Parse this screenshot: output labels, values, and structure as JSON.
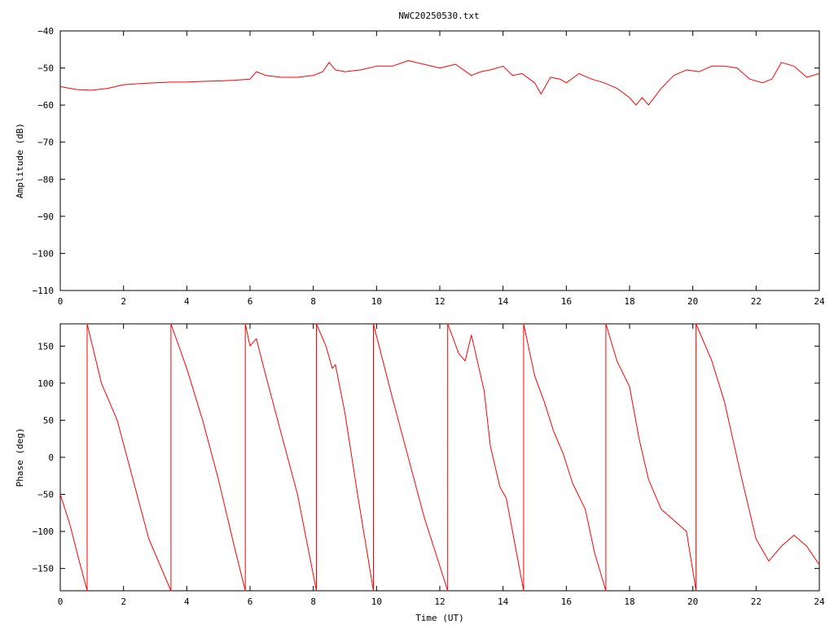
{
  "title": "NWC20250530.txt",
  "colors": {
    "series": "#ff0000",
    "axis": "#000000",
    "background": "#ffffff"
  },
  "chart_data": [
    {
      "type": "line",
      "title": "NWC20250530.txt",
      "xlabel": "",
      "ylabel": "Amplitude (dB)",
      "xlim": [
        0,
        24
      ],
      "ylim": [
        -110,
        -40
      ],
      "xticks": [
        0,
        2,
        4,
        6,
        8,
        10,
        12,
        14,
        16,
        18,
        20,
        22,
        24
      ],
      "yticks": [
        -110,
        -100,
        -90,
        -80,
        -70,
        -60,
        -50,
        -40
      ],
      "xtick_labels": [
        "0",
        "2",
        "4",
        "6",
        "8",
        "10",
        "12",
        "14",
        "16",
        "18",
        "20",
        "22",
        "24"
      ],
      "ytick_labels": [
        "−110",
        "−100",
        "−90",
        "−80",
        "−70",
        "−60",
        "−50",
        "−40"
      ],
      "grid": false,
      "series": [
        {
          "x": [
            0,
            0.5,
            1.0,
            1.5,
            2.0,
            2.5,
            3.0,
            3.5,
            4.0,
            4.5,
            5.0,
            5.5,
            6.0,
            6.2,
            6.5,
            7.0,
            7.5,
            8.0,
            8.3,
            8.5,
            8.7,
            9.0,
            9.5,
            10.0,
            10.5,
            11.0,
            11.5,
            12.0,
            12.5,
            13.0,
            13.3,
            13.6,
            14.0,
            14.3,
            14.6,
            15.0,
            15.2,
            15.5,
            15.8,
            16.0,
            16.4,
            16.8,
            17.2,
            17.6,
            18.0,
            18.2,
            18.4,
            18.6,
            19.0,
            19.4,
            19.8,
            20.2,
            20.6,
            21.0,
            21.4,
            21.8,
            22.2,
            22.5,
            22.8,
            23.2,
            23.6,
            24.0
          ],
          "y": [
            -55,
            -55.8,
            -56,
            -55.5,
            -54.5,
            -54.2,
            -54,
            -53.8,
            -53.8,
            -53.6,
            -53.5,
            -53.3,
            -53,
            -51,
            -52,
            -52.5,
            -52.5,
            -52,
            -51,
            -48.5,
            -50.5,
            -51,
            -50.5,
            -49.5,
            -49.5,
            -48,
            -49,
            -50,
            -49,
            -52,
            -51,
            -50.5,
            -49.5,
            -52,
            -51.5,
            -54,
            -57,
            -52.5,
            -53,
            -54,
            -51.5,
            -53,
            -54,
            -55.5,
            -58,
            -60,
            -58,
            -60,
            -55.5,
            -52,
            -50.5,
            -51,
            -49.5,
            -49.5,
            -50,
            -53,
            -54,
            -53,
            -48.5,
            -49.5,
            -52.5,
            -51.5
          ]
        }
      ]
    },
    {
      "type": "line",
      "title": "",
      "xlabel": "Time (UT)",
      "ylabel": "Phase (deg)",
      "xlim": [
        0,
        24
      ],
      "ylim": [
        -180,
        180
      ],
      "xticks": [
        0,
        2,
        4,
        6,
        8,
        10,
        12,
        14,
        16,
        18,
        20,
        22,
        24
      ],
      "yticks": [
        -150,
        -100,
        -50,
        0,
        50,
        100,
        150
      ],
      "xtick_labels": [
        "0",
        "2",
        "4",
        "6",
        "8",
        "10",
        "12",
        "14",
        "16",
        "18",
        "20",
        "22",
        "24"
      ],
      "ytick_labels": [
        "−150",
        "−100",
        "−50",
        "0",
        "50",
        "100",
        "150"
      ],
      "grid": false,
      "series": [
        {
          "x": [
            0,
            0.3,
            0.6,
            0.85,
            0.85,
            1.3,
            1.8,
            2.3,
            2.8,
            3.5,
            3.5,
            4.0,
            4.5,
            5.0,
            5.5,
            5.85,
            5.85,
            6.0,
            6.2,
            6.5,
            7.0,
            7.5,
            8.1,
            8.1,
            8.4,
            8.6,
            8.7,
            9.0,
            9.4,
            9.9,
            9.9,
            10.5,
            11.0,
            11.5,
            12.25,
            12.25,
            12.6,
            12.8,
            13.0,
            13.4,
            13.6,
            13.9,
            14.1,
            14.3,
            14.65,
            14.65,
            15.0,
            15.3,
            15.6,
            15.9,
            16.2,
            16.6,
            16.9,
            17.25,
            17.25,
            17.6,
            18.0,
            18.3,
            18.6,
            19.0,
            19.4,
            19.8,
            20.1,
            20.1,
            20.6,
            21.0,
            21.5,
            22.0,
            22.4,
            22.8,
            23.2,
            23.6,
            24.0
          ],
          "y": [
            -50,
            -90,
            -140,
            -180,
            180,
            100,
            50,
            -30,
            -110,
            -180,
            180,
            120,
            50,
            -30,
            -120,
            -180,
            180,
            150,
            160,
            110,
            30,
            -50,
            -180,
            180,
            150,
            120,
            125,
            60,
            -50,
            -180,
            180,
            80,
            0,
            -80,
            -180,
            180,
            140,
            130,
            165,
            90,
            15,
            -40,
            -55,
            -100,
            -180,
            180,
            110,
            75,
            35,
            5,
            -35,
            -70,
            -130,
            -180,
            180,
            130,
            95,
            25,
            -30,
            -70,
            -85,
            -100,
            -180,
            180,
            130,
            75,
            -20,
            -110,
            -140,
            -120,
            -105,
            -120,
            -145
          ]
        }
      ]
    }
  ]
}
